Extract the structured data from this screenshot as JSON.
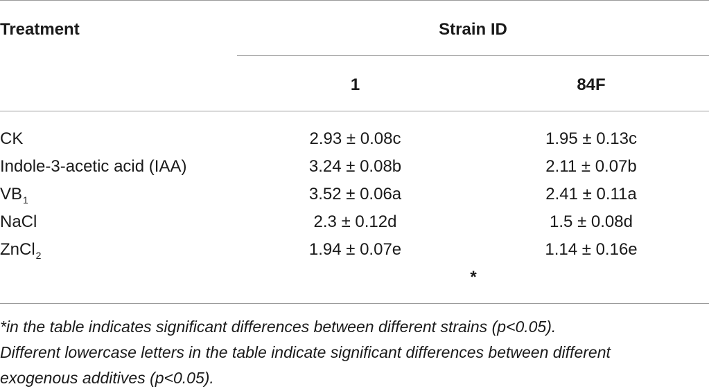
{
  "table": {
    "header": {
      "treatment": "Treatment",
      "group": "Strain ID",
      "columns": [
        "1",
        "84F"
      ]
    },
    "rows": [
      {
        "label": "CK",
        "sub": "",
        "values": [
          "2.93 ± 0.08c",
          "1.95 ± 0.13c"
        ]
      },
      {
        "label": "Indole-3-acetic acid (IAA)",
        "sub": "",
        "values": [
          "3.24 ± 0.08b",
          "2.11 ± 0.07b"
        ]
      },
      {
        "label": "VB",
        "sub": "1",
        "values": [
          "3.52 ± 0.06a",
          "2.41 ± 0.11a"
        ]
      },
      {
        "label": "NaCl",
        "sub": "",
        "values": [
          "2.3 ± 0.12d",
          "1.5 ± 0.08d"
        ]
      },
      {
        "label": "ZnCl",
        "sub": "2",
        "values": [
          "1.94 ± 0.07e",
          "1.14 ± 0.16e"
        ]
      }
    ],
    "significance_marker": "*"
  },
  "footnotes": [
    "*in the table indicates significant differences between different strains (p<0.05).",
    "Different lowercase letters in the table indicate significant differences between different",
    "exogenous additives (p<0.05)."
  ]
}
